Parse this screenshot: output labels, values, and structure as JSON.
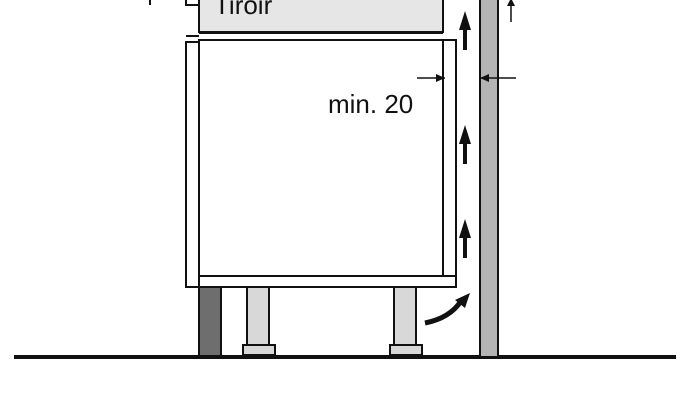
{
  "labels": {
    "drawer": "Tiroir",
    "gap": "min. 20"
  },
  "colors": {
    "line": "#111111",
    "drawer_fill": "#e6e6e6",
    "wall_fill": "#b4b4b4",
    "plinth_fill": "#6e6e6e",
    "foot_fill": "#d8d8d8",
    "background": "#ffffff"
  },
  "icons": {
    "airflow_arrow": "up-arrow-icon",
    "curved_airflow_arrow": "curved-arrow-icon",
    "dimension_arrow": "dimension-arrow-icon"
  }
}
